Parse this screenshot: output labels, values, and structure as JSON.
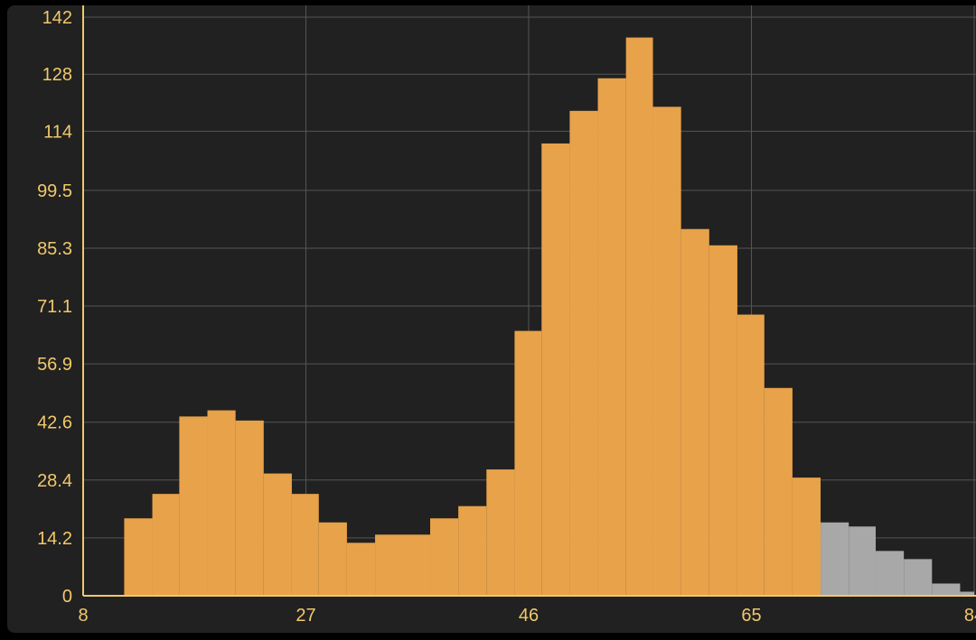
{
  "chart_data": {
    "type": "histogram",
    "title": "",
    "xlabel": "",
    "ylabel": "",
    "xlim": [
      8,
      84
    ],
    "ylim": [
      0,
      142
    ],
    "x_ticks": [
      "8",
      "27",
      "46",
      "65",
      "84"
    ],
    "y_ticks": [
      "0",
      "14.2",
      "28.4",
      "42.6",
      "56.9",
      "71.1",
      "85.3",
      "99.5",
      "114",
      "128",
      "142"
    ],
    "grid": true,
    "bins": [
      {
        "start": 8.0,
        "end": 11.5,
        "value": 0,
        "group": "selected"
      },
      {
        "start": 11.5,
        "end": 13.9,
        "value": 19,
        "group": "selected"
      },
      {
        "start": 13.9,
        "end": 16.2,
        "value": 25,
        "group": "selected"
      },
      {
        "start": 16.2,
        "end": 18.6,
        "value": 44,
        "group": "selected"
      },
      {
        "start": 18.6,
        "end": 21.0,
        "value": 45.5,
        "group": "selected"
      },
      {
        "start": 21.0,
        "end": 23.4,
        "value": 43,
        "group": "selected"
      },
      {
        "start": 23.4,
        "end": 25.8,
        "value": 30,
        "group": "selected"
      },
      {
        "start": 25.8,
        "end": 28.1,
        "value": 25,
        "group": "selected"
      },
      {
        "start": 28.1,
        "end": 30.5,
        "value": 18,
        "group": "selected"
      },
      {
        "start": 30.5,
        "end": 32.9,
        "value": 13,
        "group": "selected"
      },
      {
        "start": 32.9,
        "end": 37.6,
        "value": 15,
        "group": "selected"
      },
      {
        "start": 37.6,
        "end": 40.0,
        "value": 19,
        "group": "selected"
      },
      {
        "start": 40.0,
        "end": 42.4,
        "value": 22,
        "group": "selected"
      },
      {
        "start": 42.4,
        "end": 44.8,
        "value": 31,
        "group": "selected"
      },
      {
        "start": 44.8,
        "end": 47.1,
        "value": 65,
        "group": "selected"
      },
      {
        "start": 47.1,
        "end": 49.5,
        "value": 111,
        "group": "selected"
      },
      {
        "start": 49.5,
        "end": 51.9,
        "value": 119,
        "group": "selected"
      },
      {
        "start": 51.9,
        "end": 54.3,
        "value": 127,
        "group": "selected"
      },
      {
        "start": 54.3,
        "end": 56.6,
        "value": 137,
        "group": "selected"
      },
      {
        "start": 56.6,
        "end": 59.0,
        "value": 120,
        "group": "selected"
      },
      {
        "start": 59.0,
        "end": 61.4,
        "value": 90,
        "group": "selected"
      },
      {
        "start": 61.4,
        "end": 63.8,
        "value": 86,
        "group": "selected"
      },
      {
        "start": 63.8,
        "end": 66.1,
        "value": 69,
        "group": "selected"
      },
      {
        "start": 66.1,
        "end": 68.5,
        "value": 51,
        "group": "selected"
      },
      {
        "start": 68.5,
        "end": 70.9,
        "value": 29,
        "group": "selected"
      },
      {
        "start": 70.9,
        "end": 73.3,
        "value": 18,
        "group": "unselected"
      },
      {
        "start": 73.3,
        "end": 75.6,
        "value": 17,
        "group": "unselected"
      },
      {
        "start": 75.6,
        "end": 78.0,
        "value": 11,
        "group": "unselected"
      },
      {
        "start": 78.0,
        "end": 80.4,
        "value": 9,
        "group": "unselected"
      },
      {
        "start": 80.4,
        "end": 82.8,
        "value": 3,
        "group": "unselected"
      },
      {
        "start": 82.8,
        "end": 84.0,
        "value": 1,
        "group": "unselected"
      }
    ],
    "colors": {
      "selected": "#e8a24a",
      "unselected": "#a8a8a8",
      "axis": "#f2c86a",
      "grid": "#555555",
      "background": "#212121"
    }
  }
}
